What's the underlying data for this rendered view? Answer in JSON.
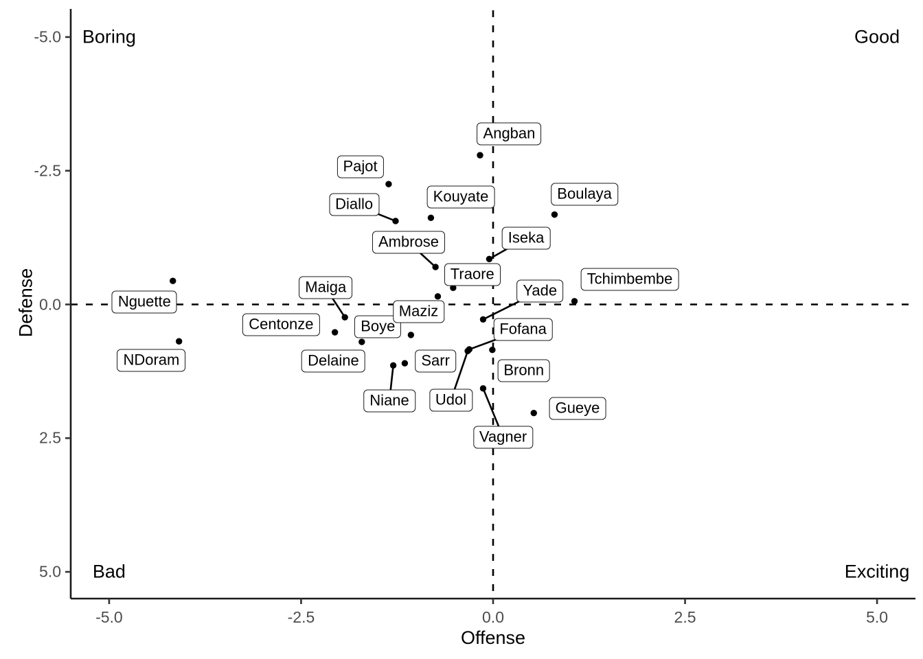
{
  "chart_data": {
    "type": "scatter",
    "title": "",
    "xlabel": "Offense",
    "ylabel": "Defense",
    "xlim": [
      -5.5,
      5.5
    ],
    "ylim": [
      -5.5,
      5.5
    ],
    "y_axis_reversed": true,
    "grid": false,
    "x_ticks": [
      -5.0,
      -2.5,
      0.0,
      2.5,
      5.0
    ],
    "y_ticks": [
      -5.0,
      -2.5,
      0.0,
      2.5,
      5.0
    ],
    "reference_lines": {
      "vertical_x": 0,
      "horizontal_y": 0,
      "style": "dashed"
    },
    "corner_annotations": [
      {
        "text": "Boring",
        "x": -5,
        "y": -5
      },
      {
        "text": "Good",
        "x": 5,
        "y": -5
      },
      {
        "text": "Bad",
        "x": -5,
        "y": 5
      },
      {
        "text": "Exciting",
        "x": 5,
        "y": 5
      }
    ],
    "points": [
      {
        "name": "Angban",
        "x": -0.17,
        "y": -2.79,
        "label_x": 0.21,
        "label_y": -3.19,
        "segment": false
      },
      {
        "name": "Pajot",
        "x": -1.36,
        "y": -2.25,
        "label_x": -1.73,
        "label_y": -2.57,
        "segment": false
      },
      {
        "name": "Diallo",
        "x": -1.27,
        "y": -1.56,
        "label_x": -1.81,
        "label_y": -1.87,
        "segment": true
      },
      {
        "name": "Kouyate",
        "x": -0.81,
        "y": -1.62,
        "label_x": -0.42,
        "label_y": -2.01,
        "segment": false
      },
      {
        "name": "Boulaya",
        "x": 0.8,
        "y": -1.68,
        "label_x": 1.19,
        "label_y": -2.06,
        "segment": false
      },
      {
        "name": "Ambrose",
        "x": -0.75,
        "y": -0.7,
        "label_x": -1.1,
        "label_y": -1.16,
        "segment": true
      },
      {
        "name": "Iseka",
        "x": -0.05,
        "y": -0.85,
        "label_x": 0.43,
        "label_y": -1.24,
        "segment": true
      },
      {
        "name": "Traore",
        "x": -0.52,
        "y": -0.31,
        "label_x": -0.27,
        "label_y": -0.56,
        "segment": false
      },
      {
        "name": "Tchimbembe",
        "x": 1.06,
        "y": -0.06,
        "label_x": 1.78,
        "label_y": -0.47,
        "segment": false
      },
      {
        "name": "Yade",
        "x": -0.13,
        "y": 0.28,
        "label_x": 0.61,
        "label_y": -0.25,
        "segment": true
      },
      {
        "name": "Nguette",
        "x": -4.17,
        "y": -0.44,
        "label_x": -4.54,
        "label_y": -0.04,
        "segment": false
      },
      {
        "name": "Maiga",
        "x": -1.93,
        "y": 0.24,
        "label_x": -2.18,
        "label_y": -0.31,
        "segment": true
      },
      {
        "name": "Centonze",
        "x": -2.06,
        "y": 0.52,
        "label_x": -2.76,
        "label_y": 0.38,
        "segment": false
      },
      {
        "name": "Boye",
        "x": -1.07,
        "y": 0.57,
        "label_x": -1.5,
        "label_y": 0.42,
        "segment": false
      },
      {
        "name": "Maziz",
        "x": -0.72,
        "y": -0.15,
        "label_x": -0.97,
        "label_y": 0.13,
        "segment": false
      },
      {
        "name": "Delaine",
        "x": -1.71,
        "y": 0.7,
        "label_x": -2.08,
        "label_y": 1.06,
        "segment": false
      },
      {
        "name": "NDoram",
        "x": -4.09,
        "y": 0.69,
        "label_x": -4.45,
        "label_y": 1.05,
        "segment": false
      },
      {
        "name": "Sarr",
        "x": -1.15,
        "y": 1.1,
        "label_x": -0.75,
        "label_y": 1.06,
        "segment": false
      },
      {
        "name": "Niane",
        "x": -1.3,
        "y": 1.14,
        "label_x": -1.35,
        "label_y": 1.8,
        "segment": true
      },
      {
        "name": "Fofana",
        "x": -0.31,
        "y": 0.84,
        "label_x": 0.39,
        "label_y": 0.47,
        "segment": true
      },
      {
        "name": "Udol",
        "x": -0.33,
        "y": 0.87,
        "label_x": -0.55,
        "label_y": 1.79,
        "segment": true
      },
      {
        "name": "Bronn",
        "x": -0.01,
        "y": 0.85,
        "label_x": 0.4,
        "label_y": 1.24,
        "segment": false
      },
      {
        "name": "Vagner",
        "x": -0.13,
        "y": 1.57,
        "label_x": 0.13,
        "label_y": 2.48,
        "segment": true
      },
      {
        "name": "Gueye",
        "x": 0.53,
        "y": 2.03,
        "label_x": 1.1,
        "label_y": 1.94,
        "segment": false
      }
    ]
  },
  "colors": {
    "point": "#000000",
    "segment": "#000000",
    "label_bg": "#ffffff",
    "label_border": "#1a1a1a",
    "axis_line": "#1a1a1a",
    "tick_mark": "#333333",
    "tick_text": "#4d4d4d",
    "reference_line": "#000000",
    "text": "#000000",
    "background": "#ffffff"
  }
}
